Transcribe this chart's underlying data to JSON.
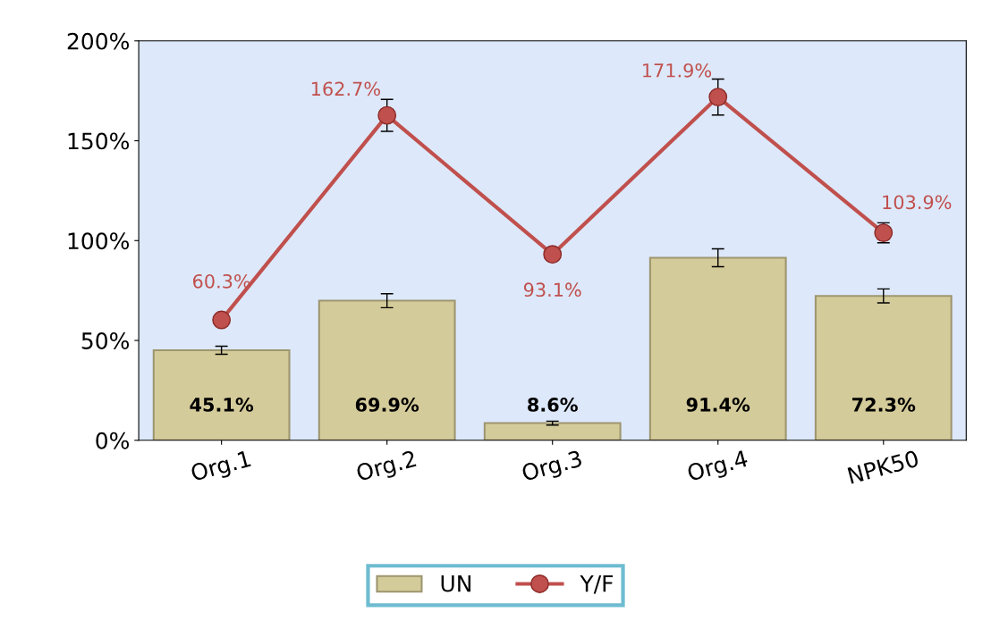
{
  "chart_data": {
    "type": "bar",
    "categories": [
      "Org.1",
      "Org.2",
      "Org.3",
      "Org.4",
      "NPK50"
    ],
    "series": [
      {
        "name": "UN",
        "type": "bar",
        "color": "#d4cb9a",
        "values": [
          45.1,
          69.9,
          8.6,
          91.4,
          72.3
        ],
        "errors": [
          2,
          3.5,
          1,
          4.5,
          3.5
        ],
        "value_labels": [
          "45.1%",
          "69.9%",
          "8.6%",
          "91.4%",
          "72.3%"
        ]
      },
      {
        "name": "Y/F",
        "type": "line",
        "color": "#c0504d",
        "values": [
          60.3,
          162.7,
          93.1,
          171.9,
          103.9
        ],
        "errors": [
          null,
          8,
          null,
          9,
          5
        ],
        "value_labels": [
          "60.3%",
          "162.7%",
          "93.1%",
          "171.9%",
          "103.9%"
        ]
      }
    ],
    "ylim": [
      0,
      200
    ],
    "yticks": [
      {
        "value": 0,
        "label": "0%"
      },
      {
        "value": 50,
        "label": "50%"
      },
      {
        "value": 100,
        "label": "100%"
      },
      {
        "value": 150,
        "label": "150%"
      },
      {
        "value": 200,
        "label": "200%"
      }
    ],
    "grid": false,
    "legend": "bottom",
    "marker": "circle",
    "line_style": "solid"
  }
}
